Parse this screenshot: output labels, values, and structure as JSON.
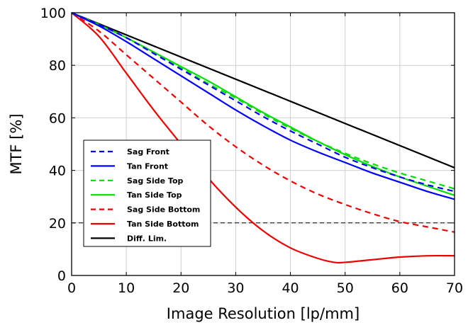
{
  "chart_data": {
    "type": "line",
    "xlabel": "Image Resolution [lp/mm]",
    "ylabel": "MTF [%]",
    "xlim": [
      0,
      70
    ],
    "ylim": [
      0,
      100
    ],
    "xticks": [
      "0",
      "10",
      "20",
      "30",
      "40",
      "50",
      "60",
      "70"
    ],
    "yticks": [
      "0",
      "20",
      "40",
      "60",
      "80",
      "100"
    ],
    "grid": true,
    "legend_position": "bottom-left",
    "series": [
      {
        "name": "Sag Front",
        "color": "#0000ff",
        "style": "dashed",
        "x": [
          0,
          5,
          10,
          15,
          20,
          25,
          30,
          35,
          40,
          45,
          50,
          55,
          60,
          65,
          70
        ],
        "y": [
          100,
          95.5,
          90.5,
          84.5,
          78.5,
          72.5,
          66.5,
          60.5,
          55,
          50,
          45,
          41,
          37.5,
          34.5,
          32
        ]
      },
      {
        "name": "Tan Front",
        "color": "#0000ff",
        "style": "solid",
        "x": [
          0,
          5,
          10,
          15,
          20,
          25,
          30,
          35,
          40,
          45,
          50,
          55,
          60,
          65,
          70
        ],
        "y": [
          100,
          95,
          89,
          82.5,
          76,
          69.5,
          63,
          57,
          51.5,
          47,
          43,
          39,
          35.5,
          32,
          29
        ]
      },
      {
        "name": "Sag Side Top",
        "color": "#00dd00",
        "style": "dashed",
        "x": [
          0,
          5,
          10,
          15,
          20,
          25,
          30,
          35,
          40,
          45,
          50,
          55,
          60,
          65,
          70
        ],
        "y": [
          100,
          95.5,
          90.5,
          85,
          79,
          73,
          67.5,
          61.5,
          56,
          51,
          46.5,
          42.5,
          39,
          36,
          33
        ]
      },
      {
        "name": "Tan Side Top",
        "color": "#00dd00",
        "style": "solid",
        "x": [
          0,
          5,
          10,
          15,
          20,
          25,
          30,
          35,
          40,
          45,
          50,
          55,
          60,
          65,
          70
        ],
        "y": [
          100,
          95.5,
          90.5,
          85,
          79.5,
          74,
          68,
          62,
          56.5,
          51,
          46,
          41.5,
          37.5,
          34,
          30.5
        ]
      },
      {
        "name": "Sag Side Bottom",
        "color": "#ee0000",
        "style": "dashed",
        "x": [
          0,
          5,
          10,
          15,
          20,
          25,
          30,
          35,
          40,
          45,
          50,
          55,
          60,
          65,
          70
        ],
        "y": [
          100,
          93,
          84,
          75,
          66,
          57,
          49,
          42,
          36,
          31,
          27,
          23.5,
          20.5,
          18.5,
          16.5
        ]
      },
      {
        "name": "Tan Side Bottom",
        "color": "#ee0000",
        "style": "solid",
        "x": [
          0,
          5,
          10,
          15,
          20,
          25,
          30,
          35,
          40,
          45,
          48,
          50,
          55,
          60,
          65,
          70
        ],
        "y": [
          100,
          91,
          77,
          63,
          50,
          37,
          26,
          17,
          10.5,
          6.5,
          5,
          5,
          6,
          7,
          7.5,
          7.5
        ]
      },
      {
        "name": "Diff. Lim.",
        "color": "#000000",
        "style": "solid",
        "x": [
          0,
          70
        ],
        "y": [
          100,
          41
        ]
      }
    ],
    "annotations": [
      {
        "type": "reference-line",
        "y": 20,
        "x_from": 0,
        "x_to": 70,
        "style": "dashed",
        "color": "#000000"
      }
    ]
  }
}
